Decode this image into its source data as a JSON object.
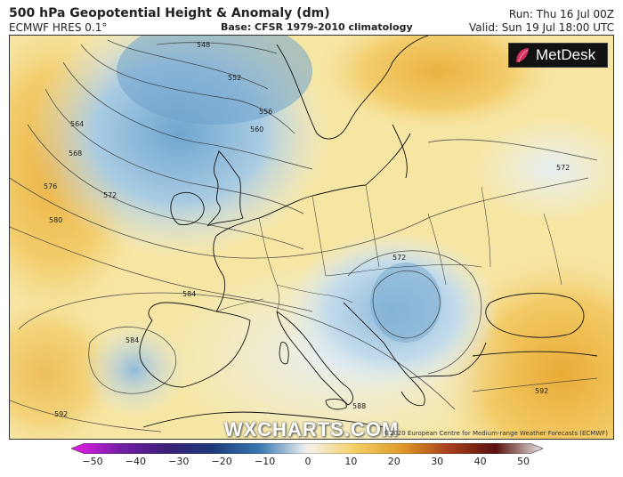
{
  "header": {
    "title": "500 hPa Geopotential Height & Anomaly (dm)",
    "model": "ECMWF HRES 0.1°",
    "base": "Base: CFSR 1979-2010 climatology",
    "run": "Run: Thu 16 Jul 00Z",
    "valid": "Valid: Sun 19 Jul 18:00 UTC"
  },
  "logo": {
    "text": "MetDesk",
    "icon": "metdesk-leaf-icon"
  },
  "watermark": "WXCHARTS.COM",
  "copyright": "©2020 European Centre for Medium-range Weather Forecasts (ECMWF)",
  "contour_labels": [
    "548",
    "552",
    "556",
    "560",
    "564",
    "568",
    "572",
    "576",
    "580",
    "584",
    "588",
    "592"
  ],
  "colorbar": {
    "ticks": [
      "−50",
      "−40",
      "−30",
      "−20",
      "−10",
      "0",
      "10",
      "20",
      "30",
      "40",
      "50"
    ],
    "colors": [
      "#e81ee8",
      "#7a1ea8",
      "#3a1e78",
      "#1e3a7a",
      "#3a78b4",
      "#a9cde4",
      "#f4f2d6",
      "#f5c64a",
      "#d07a1e",
      "#8a2a14",
      "#5a1010",
      "#e8e8e8"
    ]
  }
}
